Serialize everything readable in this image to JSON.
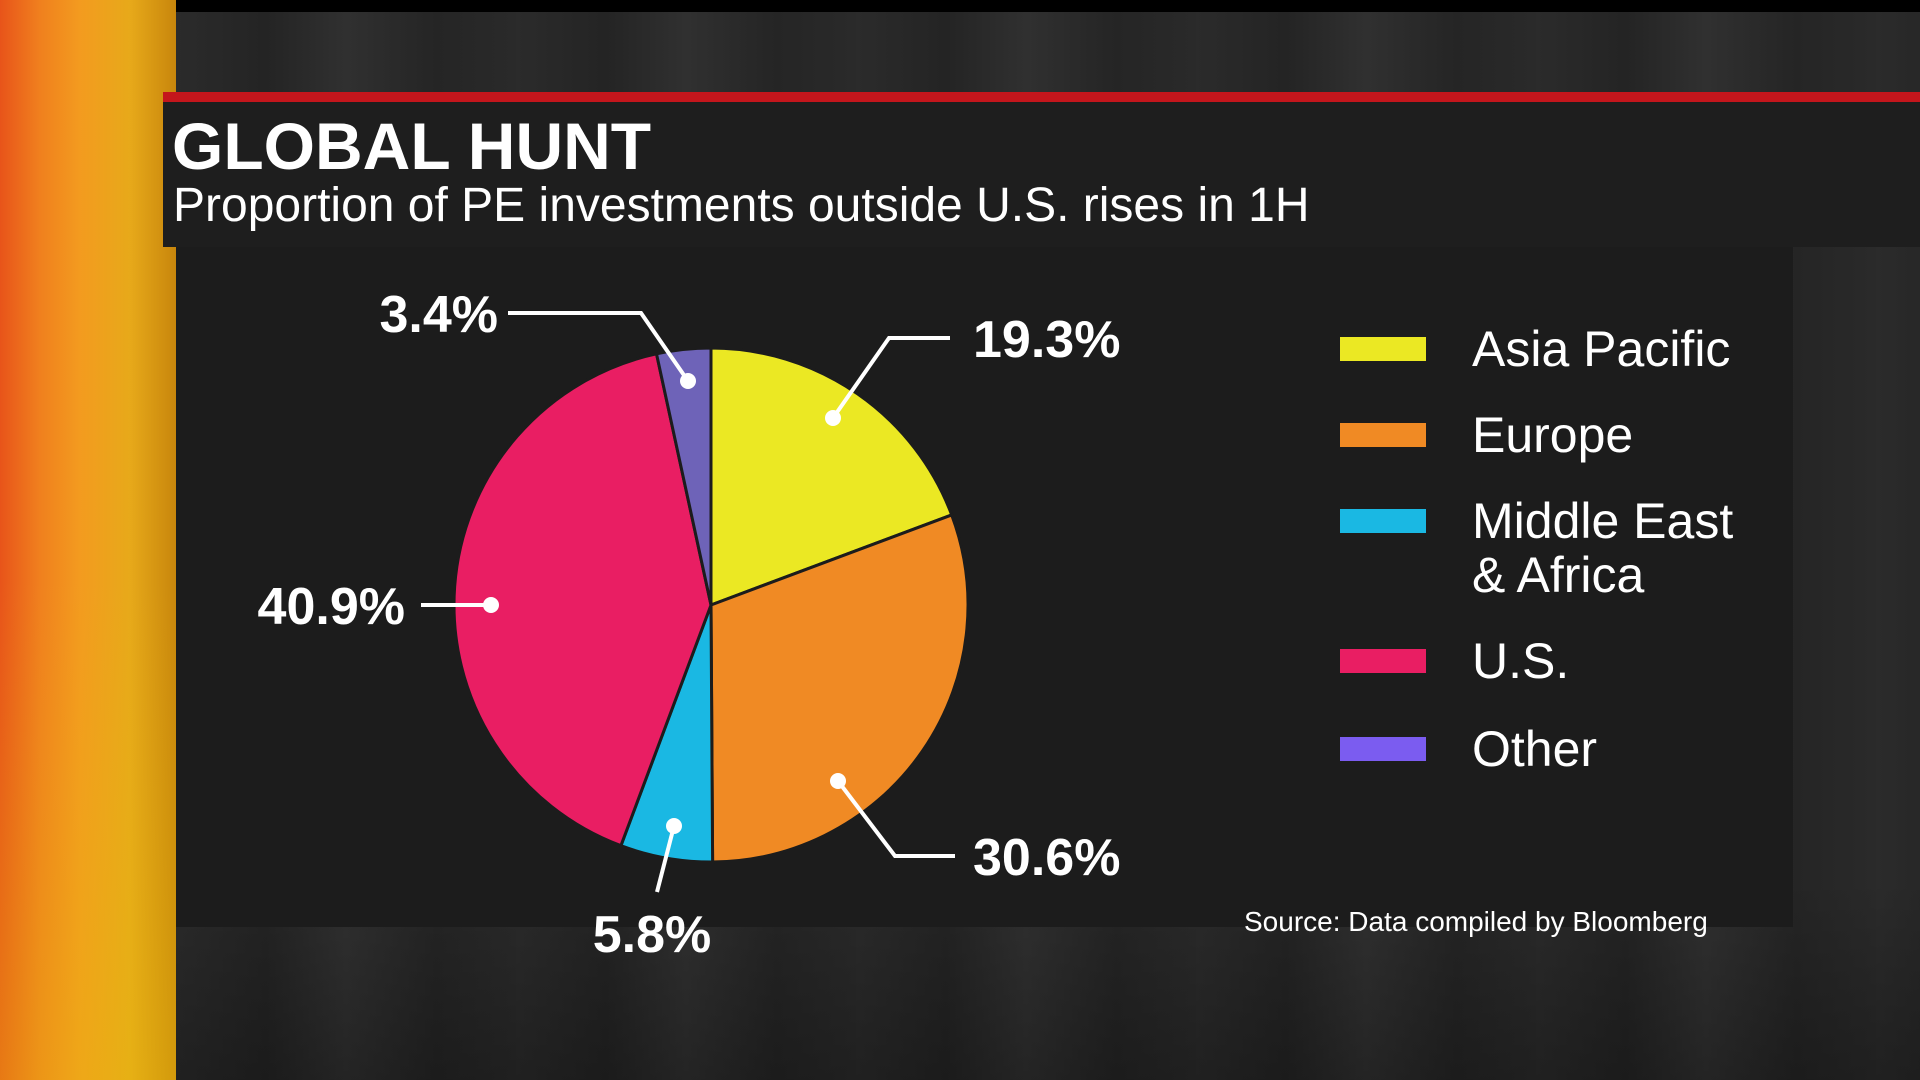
{
  "chart_data": {
    "type": "pie",
    "title": "GLOBAL HUNT",
    "subtitle": "Proportion of PE investments outside U.S. rises in 1H",
    "categories": [
      "Asia Pacific",
      "Europe",
      "Middle East & Africa",
      "U.S.",
      "Other"
    ],
    "values": [
      19.3,
      30.6,
      5.8,
      40.9,
      3.4
    ],
    "data_labels": [
      "19.3%",
      "30.6%",
      "5.8%",
      "40.9%",
      "3.4%"
    ],
    "colors": [
      "#ebe823",
      "#f08a24",
      "#1ab8e3",
      "#e91e63",
      "#6e63b8"
    ],
    "legend_colors": [
      "#ebe823",
      "#f08a24",
      "#1ab8e3",
      "#e91e63",
      "#7b5cf0"
    ],
    "legend": {
      "placement": "right",
      "entries": [
        {
          "label_lines": [
            "Asia Pacific"
          ]
        },
        {
          "label_lines": [
            "Europe"
          ]
        },
        {
          "label_lines": [
            "Middle East",
            "& Africa"
          ]
        },
        {
          "label_lines": [
            "U.S."
          ]
        },
        {
          "label_lines": [
            "Other"
          ]
        }
      ]
    },
    "source": "Source: Data compiled by Bloomberg"
  }
}
